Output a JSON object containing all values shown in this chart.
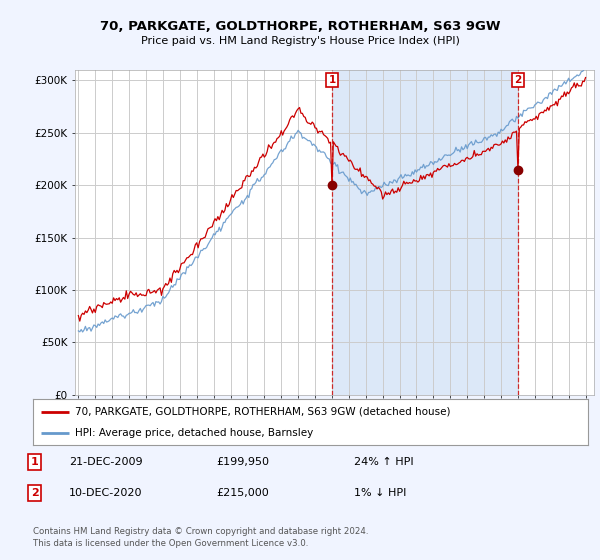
{
  "title": "70, PARKGATE, GOLDTHORPE, ROTHERHAM, S63 9GW",
  "subtitle": "Price paid vs. HM Land Registry's House Price Index (HPI)",
  "bg_color": "#f0f4ff",
  "plot_bg_color": "#ffffff",
  "shade_color": "#dce8f8",
  "ylim": [
    0,
    310000
  ],
  "yticks": [
    0,
    50000,
    100000,
    150000,
    200000,
    250000,
    300000
  ],
  "ytick_labels": [
    "£0",
    "£50K",
    "£100K",
    "£150K",
    "£200K",
    "£250K",
    "£300K"
  ],
  "xstart_year": 1995,
  "xend_year": 2025,
  "hpi_color": "#6699cc",
  "price_color": "#cc0000",
  "marker1_date": 2010.0,
  "marker1_price": 199950,
  "marker1_label": "21-DEC-2009",
  "marker1_amount": "£199,950",
  "marker1_pct": "24% ↑ HPI",
  "marker2_date": 2021.0,
  "marker2_price": 215000,
  "marker2_label": "10-DEC-2020",
  "marker2_amount": "£215,000",
  "marker2_pct": "1% ↓ HPI",
  "legend_line1": "70, PARKGATE, GOLDTHORPE, ROTHERHAM, S63 9GW (detached house)",
  "legend_line2": "HPI: Average price, detached house, Barnsley",
  "footer1": "Contains HM Land Registry data © Crown copyright and database right 2024.",
  "footer2": "This data is licensed under the Open Government Licence v3.0."
}
